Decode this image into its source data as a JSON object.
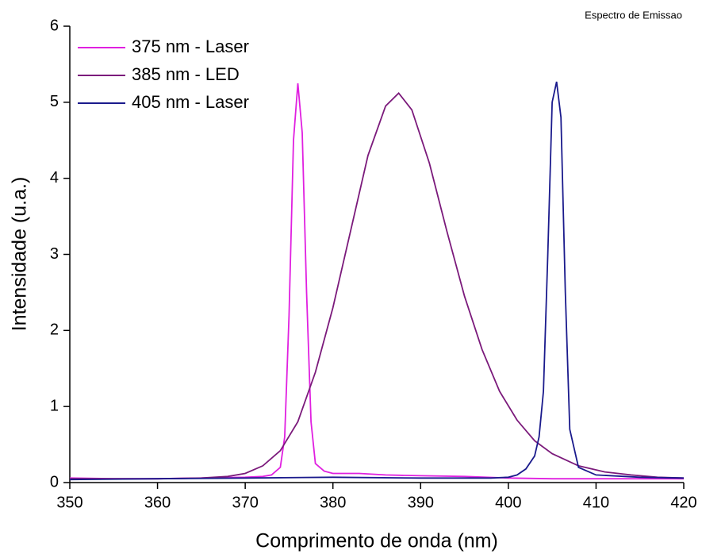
{
  "chart_data": {
    "type": "line",
    "title": "Espectro de Emissao",
    "x_label": "Comprimento de onda (nm)",
    "y_label": "Intensidade (u.a.)",
    "xlim": [
      350,
      420
    ],
    "xticks": [
      350,
      360,
      370,
      380,
      390,
      400,
      410,
      420
    ],
    "ylim": [
      0,
      6
    ],
    "yticks": [
      0,
      1,
      2,
      3,
      4,
      5,
      6
    ],
    "legend": "upper-left",
    "series": [
      {
        "name": "375 nm - Laser",
        "color": "#e020e0",
        "x": [
          350,
          355,
          360,
          365,
          370,
          372,
          373,
          374,
          374.5,
          375,
          375.5,
          376,
          376.5,
          377,
          377.5,
          378,
          379,
          380,
          383,
          386,
          390,
          395,
          400,
          405,
          410,
          415,
          420
        ],
        "values": [
          0.06,
          0.05,
          0.05,
          0.06,
          0.07,
          0.08,
          0.1,
          0.2,
          0.6,
          2.2,
          4.5,
          5.25,
          4.6,
          2.5,
          0.8,
          0.25,
          0.15,
          0.12,
          0.12,
          0.1,
          0.09,
          0.08,
          0.06,
          0.05,
          0.05,
          0.05,
          0.05
        ]
      },
      {
        "name": "385 nm - LED",
        "color": "#7b1a7b",
        "x": [
          350,
          360,
          365,
          368,
          370,
          372,
          374,
          376,
          378,
          380,
          382,
          384,
          386,
          387.5,
          389,
          391,
          393,
          395,
          397,
          399,
          401,
          403,
          405,
          408,
          411,
          414,
          417,
          420
        ],
        "values": [
          0.05,
          0.05,
          0.06,
          0.08,
          0.12,
          0.22,
          0.42,
          0.8,
          1.45,
          2.3,
          3.3,
          4.3,
          4.95,
          5.12,
          4.9,
          4.2,
          3.3,
          2.45,
          1.75,
          1.2,
          0.82,
          0.55,
          0.38,
          0.22,
          0.14,
          0.1,
          0.07,
          0.06
        ]
      },
      {
        "name": "405 nm - Laser",
        "color": "#1a1a8c",
        "x": [
          350,
          360,
          370,
          380,
          390,
          398,
          400,
          401,
          402,
          403,
          403.5,
          404,
          404.5,
          405,
          405.5,
          406,
          406.5,
          407,
          408,
          410,
          415,
          420
        ],
        "values": [
          0.04,
          0.05,
          0.06,
          0.07,
          0.06,
          0.06,
          0.07,
          0.1,
          0.18,
          0.35,
          0.6,
          1.2,
          3.0,
          5.0,
          5.27,
          4.8,
          2.5,
          0.7,
          0.2,
          0.1,
          0.07,
          0.06
        ]
      }
    ]
  }
}
